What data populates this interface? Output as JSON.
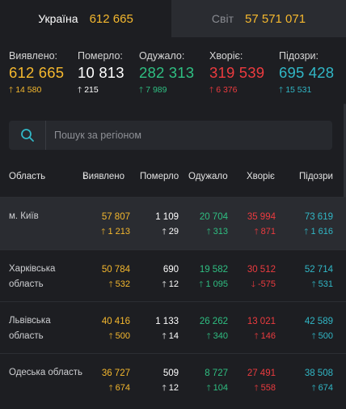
{
  "tabs": [
    {
      "label": "Україна",
      "value": "612 665",
      "active": true
    },
    {
      "label": "Світ",
      "value": "57 571 071",
      "active": false
    }
  ],
  "stats": [
    {
      "label": "Виявлено:",
      "value": "612 665",
      "delta": "14 580",
      "dir": "up",
      "color": "#f5b82e"
    },
    {
      "label": "Померло:",
      "value": "10 813",
      "delta": "215",
      "dir": "up",
      "color": "#ffffff"
    },
    {
      "label": "Одужало:",
      "value": "282 313",
      "delta": "7 989",
      "dir": "up",
      "color": "#2fbf82"
    },
    {
      "label": "Хворіє:",
      "value": "319 539",
      "delta": "6 376",
      "dir": "up",
      "color": "#ec3b3f"
    },
    {
      "label": "Підозри:",
      "value": "695 428",
      "delta": "15 531",
      "dir": "up",
      "color": "#31b7c6"
    }
  ],
  "search": {
    "placeholder": "Пошук за регіоном"
  },
  "table": {
    "headers": {
      "region": "Область",
      "confirmed": "Виявлено",
      "confirmed_sort_icon": "↓",
      "deaths": "Померло",
      "recovered": "Одужало",
      "sick": "Хворіє",
      "suspected": "Підозри"
    },
    "rows": [
      {
        "name": "м. Київ",
        "confirmed": {
          "v": "57 807",
          "d": "1 213",
          "dir": "up"
        },
        "deaths": {
          "v": "1 109",
          "d": "29",
          "dir": "up"
        },
        "recovered": {
          "v": "20 704",
          "d": "313",
          "dir": "up"
        },
        "sick": {
          "v": "35 994",
          "d": "871",
          "dir": "up"
        },
        "suspected": {
          "v": "73 619",
          "d": "1 616",
          "dir": "up"
        }
      },
      {
        "name": "Харківська область",
        "confirmed": {
          "v": "50 784",
          "d": "532",
          "dir": "up"
        },
        "deaths": {
          "v": "690",
          "d": "12",
          "dir": "up"
        },
        "recovered": {
          "v": "19 582",
          "d": "1 095",
          "dir": "up"
        },
        "sick": {
          "v": "30 512",
          "d": "-575",
          "dir": "down"
        },
        "suspected": {
          "v": "52 714",
          "d": "531",
          "dir": "up"
        }
      },
      {
        "name": "Львівська область",
        "confirmed": {
          "v": "40 416",
          "d": "500",
          "dir": "up"
        },
        "deaths": {
          "v": "1 133",
          "d": "14",
          "dir": "up"
        },
        "recovered": {
          "v": "26 262",
          "d": "340",
          "dir": "up"
        },
        "sick": {
          "v": "13 021",
          "d": "146",
          "dir": "up"
        },
        "suspected": {
          "v": "42 589",
          "d": "500",
          "dir": "up"
        }
      },
      {
        "name": "Одеська область",
        "confirmed": {
          "v": "36 727",
          "d": "674",
          "dir": "up"
        },
        "deaths": {
          "v": "509",
          "d": "12",
          "dir": "up"
        },
        "recovered": {
          "v": "8 727",
          "d": "104",
          "dir": "up"
        },
        "sick": {
          "v": "27 491",
          "d": "558",
          "dir": "up"
        },
        "suspected": {
          "v": "38 508",
          "d": "674",
          "dir": "up"
        }
      }
    ]
  },
  "icons": {
    "search": "search-icon",
    "up": "arrow-up-icon",
    "down": "arrow-down-icon"
  }
}
